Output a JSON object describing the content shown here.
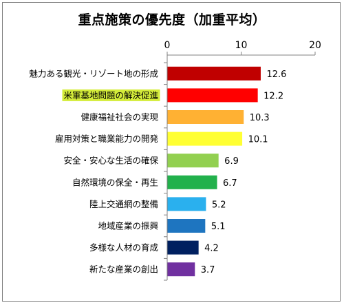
{
  "chart_data": {
    "type": "bar",
    "orientation": "horizontal",
    "title": "重点施策の優先度（加重平均）",
    "categories": [
      "魅力ある観光・リゾート地の形成",
      "米軍基地問題の解決促進",
      "健康福祉社会の実現",
      "雇用対策と職業能力の開発",
      "安全・安心な生活の確保",
      "自然環境の保全・再生",
      "陸上交通網の整備",
      "地域産業の振興",
      "多様な人材の育成",
      "新たな産業の創出"
    ],
    "values": [
      12.6,
      12.2,
      10.3,
      10.1,
      6.9,
      6.7,
      5.2,
      5.1,
      4.2,
      3.7
    ],
    "value_labels": [
      "12.6",
      "12.2",
      "10.3",
      "10.1",
      "6.9",
      "6.7",
      "5.2",
      "5.1",
      "4.2",
      "3.7"
    ],
    "colors": [
      "#c00000",
      "#ff0000",
      "#ffb133",
      "#ffff33",
      "#92d050",
      "#22b14c",
      "#2ab0ee",
      "#1e75c0",
      "#002060",
      "#7030a0"
    ],
    "highlight_index": 1,
    "highlight_color": "#d4ec3a",
    "xlim": [
      0,
      20
    ],
    "x_ticks": [
      0,
      10,
      20
    ],
    "x_tick_labels": [
      "0",
      "10",
      "20"
    ],
    "xlabel": "",
    "ylabel": "",
    "axis_position": "top",
    "grid": false,
    "legend": "none"
  }
}
